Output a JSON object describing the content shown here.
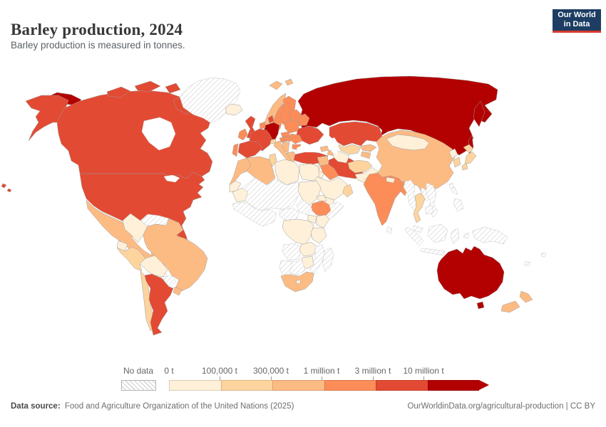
{
  "header": {
    "title": "Barley production, 2024",
    "subtitle": "Barley production is measured in tonnes.",
    "logo_line1": "Our World",
    "logo_line2": "in Data"
  },
  "legend": {
    "no_data_label": "No data",
    "stops": [
      "0 t",
      "100,000 t",
      "300,000 t",
      "1 million t",
      "3 million t",
      "10 million t"
    ],
    "colors": [
      "#fef0d9",
      "#fdd49e",
      "#fdbb84",
      "#fc8d59",
      "#e34a33",
      "#b30000"
    ],
    "no_data_pattern": "diagonal-hatch"
  },
  "footer": {
    "source_label": "Data source:",
    "source_text": "Food and Agriculture Organization of the United Nations (2025)",
    "credit": "OurWorldinData.org/agricultural-production | CC BY"
  },
  "chart_data": {
    "type": "heatmap",
    "subtype": "choropleth-world-map",
    "title": "Barley production, 2024",
    "unit": "tonnes",
    "year": "2024",
    "bins": [
      "0 t–100,000 t",
      "100,000–300,000 t",
      "300,000 t–1 million t",
      "1–3 million t",
      "3–10 million t",
      "10+ million t"
    ],
    "colors": [
      "#fef0d9",
      "#fdd49e",
      "#fdbb84",
      "#fc8d59",
      "#e34a33",
      "#b30000"
    ],
    "legend_position": "bottom",
    "countries": {
      "canada": 4,
      "alaska": 4,
      "usa": 4,
      "hawaii": 4,
      "greenland": "no_data",
      "mexico": 2,
      "guatemala": 1,
      "central-america": "no_data",
      "cuba": "no_data",
      "hispaniola": "no_data",
      "colombia": 0,
      "venezuela": "no_data",
      "guyanas": "no_data",
      "ecuador": 0,
      "peru": 1,
      "brazil": 2,
      "bolivia": 0,
      "paraguay": "no_data",
      "uruguay": 2,
      "chile": 1,
      "argentina": 4,
      "iceland": 0,
      "uk": 4,
      "ireland": 3,
      "norway": 2,
      "svalbard-1": 2,
      "svalbard-2": 2,
      "sweden": 3,
      "finland": 3,
      "denmark": 4,
      "germany": 5,
      "benelux": 3,
      "france": 4,
      "spain": 4,
      "portugal": 3,
      "italy": 2,
      "sicily": 2,
      "switzerland": 1,
      "austria": 3,
      "czechia": 3,
      "poland": 3,
      "baltics": 3,
      "belarus": 3,
      "ukraine": 4,
      "hungary": 3,
      "romania": 3,
      "balkans": 2,
      "bulgaria": 3,
      "greece": 2,
      "russia": 5,
      "chukotka": 5,
      "kamchatka": 5,
      "sakhalin": 5,
      "turkey": 4,
      "cyprus": 3,
      "georgia": 2,
      "azerbaijan": 2,
      "syria": 2,
      "levant": 0,
      "iraq": 3,
      "iran": 4,
      "saudi-arabia": 0,
      "yemen": 0,
      "oman": 1,
      "kazakhstan": 4,
      "uzbekistan": 1,
      "turkmenistan": 0,
      "kyrgyzstan": 2,
      "tajikistan": 2,
      "afghanistan": 1,
      "pakistan": 0,
      "india": 3,
      "nepal": 0,
      "bhutan-bangladesh": 3,
      "sri-lanka": "no_data",
      "china": 2,
      "mongolia": 0,
      "north-korea": 0,
      "south-korea": 1,
      "japan-1": 1,
      "japan-2": 1,
      "japan-3": 1,
      "taiwan": "no_data",
      "myanmar": "no_data",
      "thailand": 1,
      "laos": "no_data",
      "vietnam": "no_data",
      "cambodia": "no_data",
      "malaysia": "no_data",
      "sumatra": "no_data",
      "java": "no_data",
      "borneo": "no_data",
      "sulawesi": "no_data",
      "moluccas": "no_data",
      "lesser-sunda": "no_data",
      "philippines-1": "no_data",
      "philippines-2": "no_data",
      "new-guinea": "no_data",
      "morocco": 2,
      "western-sahara": 0,
      "algeria": 2,
      "tunisia": 1,
      "libya": 0,
      "egypt": 0,
      "mauritania": 0,
      "sahel": "no_data",
      "west-africa": "no_data",
      "sudan": 0,
      "eritrea": 0,
      "ethiopia": 3,
      "somalia": "no_data",
      "south-sudan": "no_data",
      "central-africa": "no_data",
      "kenya": 0,
      "uganda": 0,
      "drc": 0,
      "tanzania": 0,
      "angola": "no_data",
      "zambia": 0,
      "mozambique": "no_data",
      "zimbabwe": 0,
      "namibia": "no_data",
      "botswana": "no_data",
      "south-africa": 2,
      "lesotho": 0,
      "madagascar": "no_data",
      "australia": 5,
      "tasmania": 5,
      "new-zealand-north": 2,
      "new-zealand-south": 2,
      "pacific-1": "no_data",
      "pacific-2": "no_data"
    }
  }
}
